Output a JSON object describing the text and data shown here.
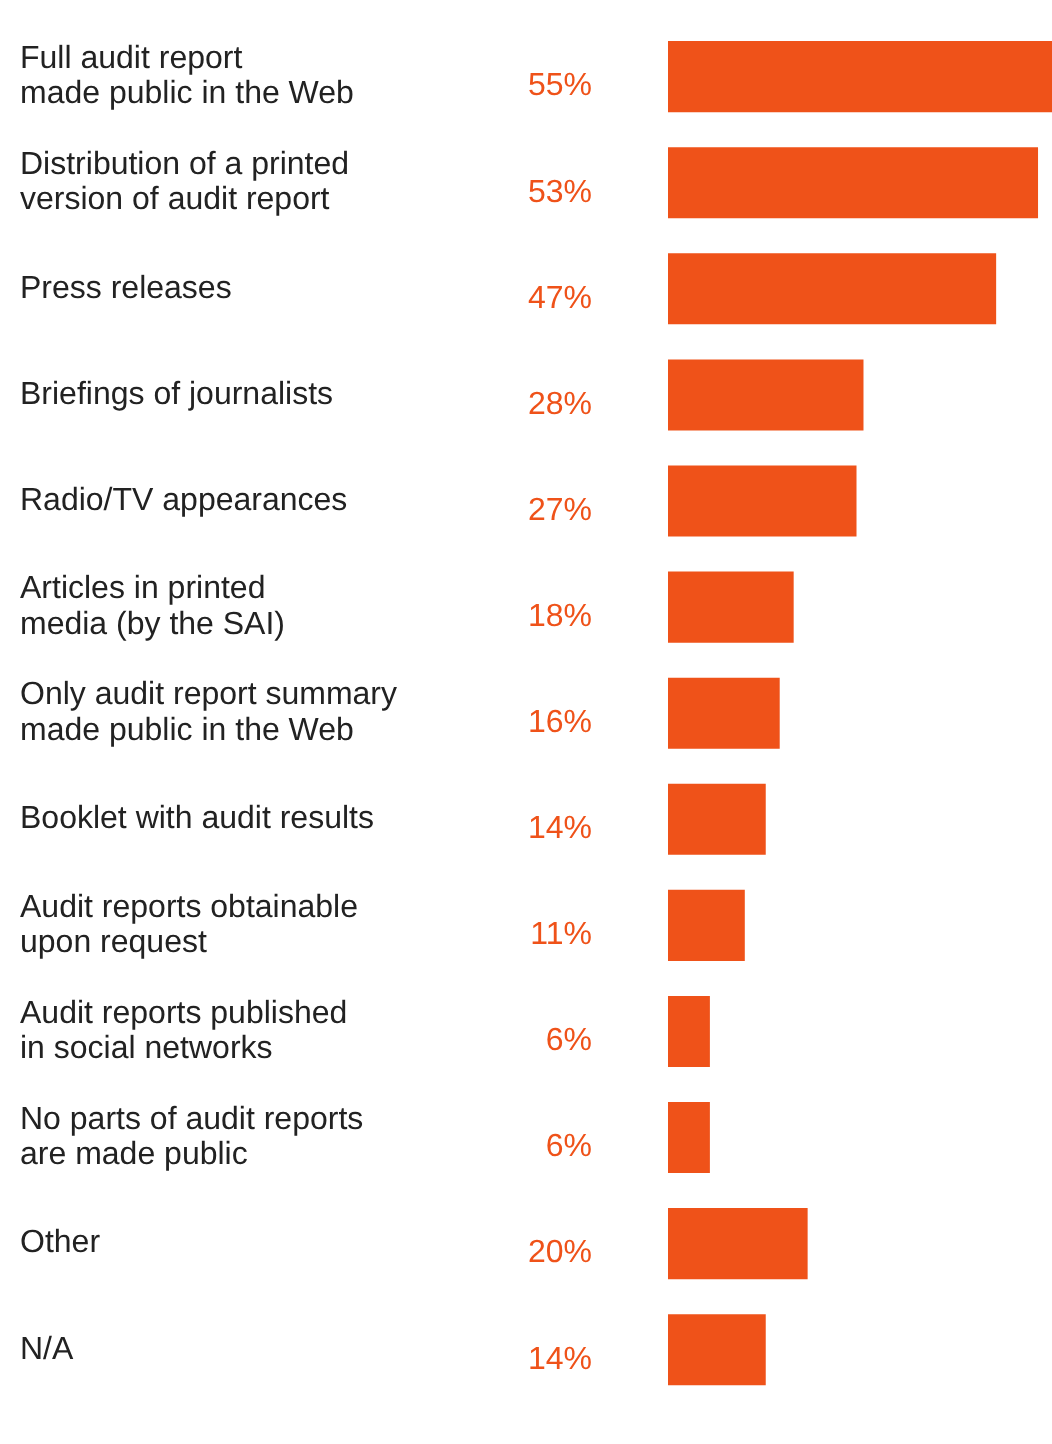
{
  "chart_data": {
    "type": "bar",
    "orientation": "horizontal",
    "categories": [
      "Full audit report\nmade public in the Web",
      "Distribution of a printed\nversion of audit report",
      "Press releases",
      "Briefings of journalists",
      "Radio/TV appearances",
      "Articles in printed\nmedia (by the SAI)",
      "Only audit report summary\nmade public in the Web",
      "Booklet with audit results",
      "Audit reports obtainable\nupon request",
      "Audit reports published\nin social networks",
      "No parts of audit reports\nare made public",
      "Other",
      "N/A"
    ],
    "values": [
      55,
      53,
      47,
      28,
      27,
      18,
      16,
      14,
      11,
      6,
      6,
      20,
      14
    ],
    "value_labels": [
      "55%",
      "53%",
      "47%",
      "28%",
      "27%",
      "18%",
      "16%",
      "14%",
      "11%",
      "6%",
      "6%",
      "20%",
      "14%"
    ],
    "color": "#ef5219",
    "xlim": [
      0,
      55
    ],
    "tick_labels": "y"
  }
}
